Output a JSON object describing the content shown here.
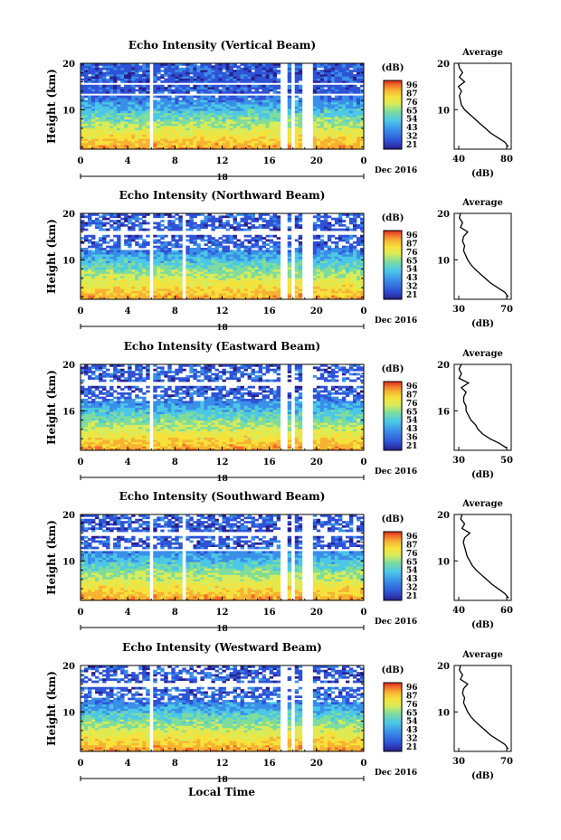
{
  "figure": {
    "xlabel": "Local Time",
    "date_label": "Dec 2016",
    "day_label": "18",
    "colorbar_unit": "(dB)",
    "average_title": "Average",
    "average_xlabel": "(dB)"
  },
  "colors": {
    "scale": [
      "#2a1f8c",
      "#2f52d6",
      "#3a8fe8",
      "#4cc8e6",
      "#7fdc9c",
      "#d9ec5a",
      "#f6e23b",
      "#f7b233",
      "#f06a2a",
      "#d8281e"
    ]
  },
  "chart_data": [
    {
      "type": "heatmap",
      "title": "Echo Intensity (Vertical Beam)",
      "ylabel": "Height (km)",
      "x_ticks": [
        "0",
        "4",
        "8",
        "12",
        "16",
        "20",
        "0"
      ],
      "y_ticks": [
        "20",
        "10"
      ],
      "xlim": [
        0,
        24
      ],
      "ylim": [
        1.5,
        20
      ],
      "colorbar_ticks": [
        "96",
        "87",
        "76",
        "65",
        "54",
        "43",
        "32",
        "21"
      ],
      "gaps_hours": [
        [
          5.8,
          6.3
        ],
        [
          17.0,
          17.6
        ],
        [
          18.0,
          18.2
        ],
        [
          18.8,
          19.6
        ]
      ],
      "missing_band_km": [
        [
          15.2,
          16.0
        ],
        [
          12.9,
          13.3
        ]
      ],
      "profile": {
        "xticks": [
          "40",
          "80"
        ],
        "xlim": [
          30,
          85
        ],
        "height_km": [
          2,
          3,
          4,
          5,
          6,
          7,
          8,
          9,
          10,
          11,
          12,
          13,
          14,
          15,
          16,
          17,
          18,
          19,
          20
        ],
        "db": [
          82,
          79,
          72,
          65,
          60,
          55,
          50,
          45,
          40,
          37,
          36,
          35,
          37,
          34,
          40,
          35,
          38,
          35,
          34
        ]
      }
    },
    {
      "type": "heatmap",
      "title": "Echo Intensity (Northward Beam)",
      "ylabel": "Height (km)",
      "x_ticks": [
        "0",
        "4",
        "8",
        "12",
        "16",
        "20",
        "0"
      ],
      "y_ticks": [
        "20",
        "10"
      ],
      "xlim": [
        0,
        24
      ],
      "ylim": [
        1.5,
        20
      ],
      "colorbar_ticks": [
        "96",
        "87",
        "76",
        "65",
        "54",
        "43",
        "32",
        "21"
      ],
      "gaps_hours": [
        [
          5.8,
          6.3
        ],
        [
          8.7,
          9.0
        ],
        [
          17.0,
          17.6
        ],
        [
          18.0,
          18.2
        ],
        [
          18.8,
          19.6
        ]
      ],
      "missing_band_km": [
        [
          15.6,
          16.4
        ],
        [
          12.0,
          12.3
        ]
      ],
      "profile": {
        "xticks": [
          "30",
          "70"
        ],
        "xlim": [
          25,
          80
        ],
        "height_km": [
          2,
          3,
          4,
          5,
          6,
          7,
          8,
          9,
          10,
          11,
          12,
          13,
          14,
          15,
          16,
          17,
          18,
          19,
          20
        ],
        "db": [
          77,
          74,
          67,
          60,
          55,
          50,
          45,
          41,
          38,
          36,
          34,
          35,
          33,
          34,
          38,
          31,
          33,
          30,
          31
        ]
      }
    },
    {
      "type": "heatmap",
      "title": "Echo Intensity (Eastward Beam)",
      "ylabel": "Height (km)",
      "x_ticks": [
        "0",
        "4",
        "8",
        "12",
        "16",
        "20",
        "0"
      ],
      "y_ticks": [
        "20",
        "16"
      ],
      "xlim": [
        0,
        24
      ],
      "ylim": [
        1.5,
        20
      ],
      "colorbar_ticks": [
        "96",
        "87",
        "76",
        "65",
        "54",
        "43",
        "36",
        "21"
      ],
      "gaps_hours": [
        [
          5.8,
          6.3
        ],
        [
          17.0,
          17.6
        ],
        [
          18.0,
          18.2
        ],
        [
          18.8,
          19.6
        ]
      ],
      "missing_band_km": [
        [
          15.6,
          16.4
        ]
      ],
      "profile": {
        "xticks": [
          "30",
          "50"
        ],
        "xlim": [
          28,
          52
        ],
        "height_km": [
          2,
          3,
          4,
          5,
          6,
          7,
          8,
          9,
          10,
          11,
          12,
          13,
          14,
          15,
          16,
          17,
          18,
          19,
          20
        ],
        "db": [
          50,
          47,
          43,
          40,
          38,
          37,
          35,
          34,
          33,
          33,
          32,
          32,
          33,
          31,
          34,
          30,
          31,
          30,
          31
        ]
      }
    },
    {
      "type": "heatmap",
      "title": "Echo Intensity (Southward Beam)",
      "ylabel": "Height (km)",
      "x_ticks": [
        "0",
        "4",
        "8",
        "12",
        "16",
        "20",
        "0"
      ],
      "y_ticks": [
        "20",
        "10"
      ],
      "xlim": [
        0,
        24
      ],
      "ylim": [
        1.5,
        20
      ],
      "colorbar_ticks": [
        "96",
        "87",
        "76",
        "65",
        "54",
        "43",
        "32",
        "21"
      ],
      "gaps_hours": [
        [
          5.8,
          6.3
        ],
        [
          8.7,
          9.0
        ],
        [
          17.0,
          17.6
        ],
        [
          18.0,
          18.2
        ],
        [
          18.8,
          19.6
        ]
      ],
      "missing_band_km": [
        [
          15.6,
          16.4
        ],
        [
          12.0,
          12.4
        ]
      ],
      "profile": {
        "xticks": [
          "40",
          "60"
        ],
        "xlim": [
          28,
          72
        ],
        "height_km": [
          2,
          3,
          4,
          5,
          6,
          7,
          8,
          9,
          10,
          11,
          12,
          13,
          14,
          15,
          16,
          17,
          18,
          19,
          20
        ],
        "db": [
          70,
          67,
          62,
          57,
          53,
          49,
          45,
          42,
          40,
          38,
          37,
          36,
          35,
          36,
          40,
          34,
          36,
          33,
          34
        ]
      }
    },
    {
      "type": "heatmap",
      "title": "Echo Intensity (Westward Beam)",
      "ylabel": "Height (km)",
      "x_ticks": [
        "0",
        "4",
        "8",
        "12",
        "16",
        "20",
        "0"
      ],
      "y_ticks": [
        "20",
        "10"
      ],
      "xlim": [
        0,
        24
      ],
      "ylim": [
        1.5,
        20
      ],
      "colorbar_ticks": [
        "96",
        "87",
        "76",
        "65",
        "54",
        "43",
        "32",
        "21"
      ],
      "gaps_hours": [
        [
          5.8,
          6.3
        ],
        [
          17.0,
          17.6
        ],
        [
          18.0,
          18.2
        ],
        [
          18.8,
          19.6
        ]
      ],
      "missing_band_km": [
        [
          15.4,
          16.2
        ]
      ],
      "profile": {
        "xticks": [
          "30",
          "70"
        ],
        "xlim": [
          25,
          80
        ],
        "height_km": [
          2,
          3,
          4,
          5,
          6,
          7,
          8,
          9,
          10,
          11,
          12,
          13,
          14,
          15,
          16,
          17,
          18,
          19,
          20
        ],
        "db": [
          77,
          74,
          67,
          60,
          55,
          50,
          45,
          41,
          38,
          36,
          34,
          35,
          33,
          34,
          38,
          31,
          33,
          30,
          31
        ]
      }
    }
  ]
}
